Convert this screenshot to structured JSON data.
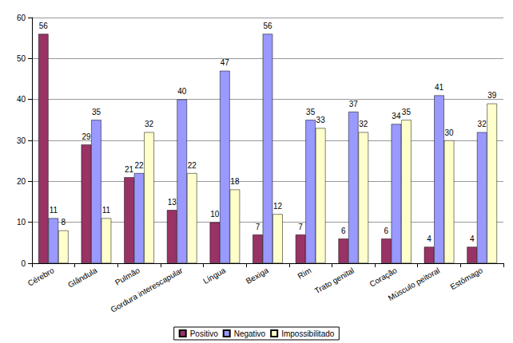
{
  "chart_data": {
    "type": "bar",
    "categories": [
      "Cérebro",
      "Glândula",
      "Pulmão",
      "Gordura interescapular",
      "Língua",
      "Bexiga",
      "Rim",
      "Trato genital",
      "Coração",
      "Músculo peitoral",
      "Estômago"
    ],
    "series": [
      {
        "name": "Positivo",
        "color": "#993366",
        "values": [
          56,
          29,
          21,
          13,
          10,
          7,
          7,
          6,
          6,
          4,
          4
        ]
      },
      {
        "name": "Negativo",
        "color": "#9999ff",
        "values": [
          11,
          35,
          22,
          40,
          47,
          56,
          35,
          37,
          34,
          41,
          32
        ]
      },
      {
        "name": "Impossibilitado",
        "color": "#ffffcc",
        "values": [
          8,
          11,
          32,
          22,
          18,
          12,
          33,
          32,
          35,
          30,
          39
        ]
      }
    ],
    "ylim": [
      0,
      60
    ],
    "yticks": [
      0,
      10,
      20,
      30,
      40,
      50,
      60
    ],
    "grid": true,
    "legend": "bottom",
    "data_labels": true
  }
}
